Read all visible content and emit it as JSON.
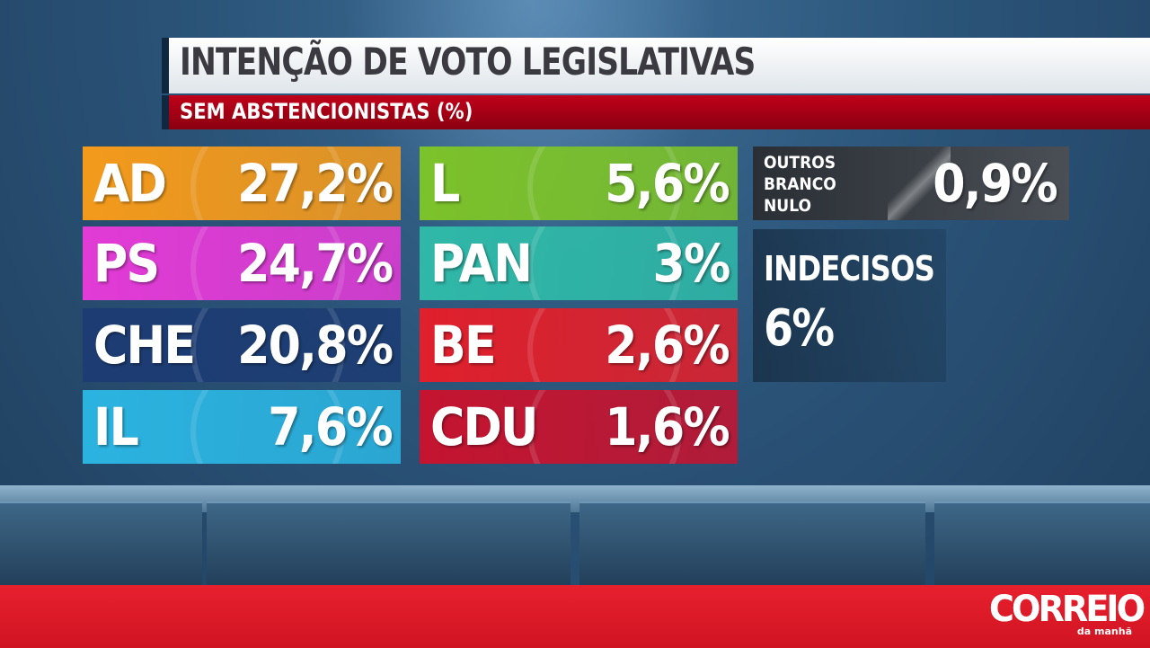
{
  "header": {
    "title": "INTENÇÃO DE VOTO LEGISLATIVAS",
    "subtitle": "SEM ABSTENCIONISTAS (%)"
  },
  "parties_left": [
    {
      "name": "AD",
      "pct": "27,2%",
      "value": 27.2,
      "color": "#f39a1c"
    },
    {
      "name": "PS",
      "pct": "24,7%",
      "value": 24.7,
      "color": "#e23bd6"
    },
    {
      "name": "CHE",
      "pct": "20,8%",
      "value": 20.8,
      "color": "#1c3c73"
    },
    {
      "name": "IL",
      "pct": "7,6%",
      "value": 7.6,
      "color": "#2bb3e0"
    }
  ],
  "parties_right": [
    {
      "name": "L",
      "pct": "5,6%",
      "value": 5.6,
      "color": "#7cc22a"
    },
    {
      "name": "PAN",
      "pct": "3%",
      "value": 3,
      "color": "#2fb8a8"
    },
    {
      "name": "BE",
      "pct": "2,6%",
      "value": 2.6,
      "color": "#e0202c"
    },
    {
      "name": "CDU",
      "pct": "1,6%",
      "value": 1.6,
      "color": "#c41430"
    }
  ],
  "outros": {
    "label_lines": [
      "OUTROS",
      "BRANCO",
      "NULO"
    ],
    "pct": "0,9%",
    "value": 0.9
  },
  "indecisos": {
    "label": "INDECISOS",
    "pct": "6%",
    "value": 6
  },
  "footer": {
    "logo_name": "correio-da-manha-logo",
    "logo_word": "CORREIO",
    "logo_sub": "da manhã"
  }
}
